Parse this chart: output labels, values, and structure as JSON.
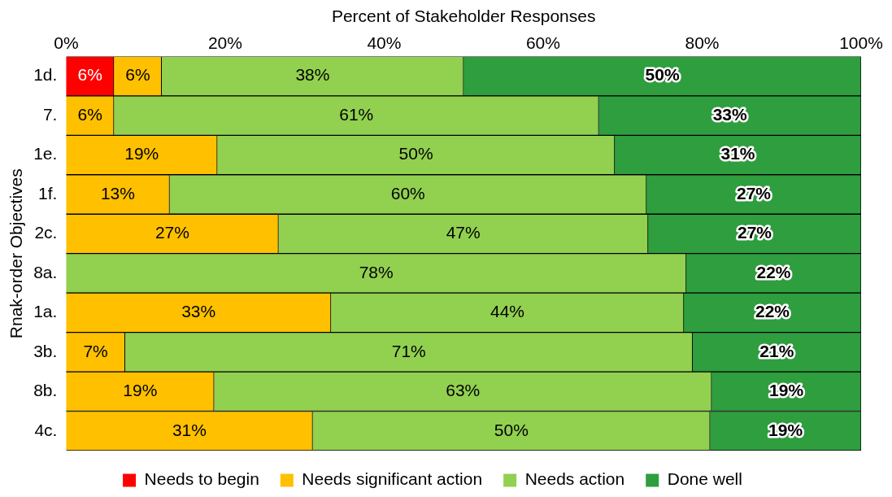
{
  "chart_data": {
    "type": "bar",
    "orientation": "horizontal",
    "stacked": true,
    "xlabel": "Percent of Stakeholder Responses",
    "ylabel": "Rnak-order Objectives",
    "categories": [
      "1d.",
      "7.",
      "1e.",
      "1f.",
      "2c.",
      "8a.",
      "1a.",
      "3b.",
      "8b.",
      "4c."
    ],
    "xlim": [
      0,
      100
    ],
    "xticks": [
      {
        "value": 0,
        "label": "0%"
      },
      {
        "value": 20,
        "label": "20%"
      },
      {
        "value": 40,
        "label": "40%"
      },
      {
        "value": 60,
        "label": "60%"
      },
      {
        "value": 80,
        "label": "80%"
      },
      {
        "value": 100,
        "label": "100%"
      }
    ],
    "grid": false,
    "legend": "bottom",
    "series": [
      {
        "name": "Needs to begin",
        "color": "#ff0000",
        "values": [
          6,
          null,
          null,
          null,
          null,
          null,
          null,
          null,
          null,
          null
        ],
        "value_labels": [
          "6%",
          null,
          null,
          null,
          null,
          null,
          null,
          null,
          null,
          null
        ]
      },
      {
        "name": "Needs significant action",
        "color": "#ffc000",
        "values": [
          6,
          6,
          19,
          13,
          26.7,
          null,
          33.3,
          7.4,
          18.6,
          31
        ],
        "value_labels": [
          "6%",
          "6%",
          "19%",
          "13%",
          "27%",
          null,
          "33%",
          "7%",
          "19%",
          "31%"
        ]
      },
      {
        "name": "Needs action",
        "color": "#92d050",
        "values": [
          38,
          61,
          50,
          60,
          46.5,
          78,
          44.4,
          71.4,
          62.6,
          50
        ],
        "value_labels": [
          "38%",
          "61%",
          "50%",
          "60%",
          "47%",
          "78%",
          "44%",
          "71%",
          "63%",
          "50%"
        ]
      },
      {
        "name": "Done well",
        "color": "#2e9e3e",
        "values": [
          50,
          33,
          31,
          27,
          26.8,
          22,
          22.3,
          21.2,
          18.8,
          19
        ],
        "value_labels": [
          "50%",
          "33%",
          "31%",
          "27%",
          "27%",
          "22%",
          "22%",
          "21%",
          "19%",
          "19%"
        ]
      }
    ]
  }
}
